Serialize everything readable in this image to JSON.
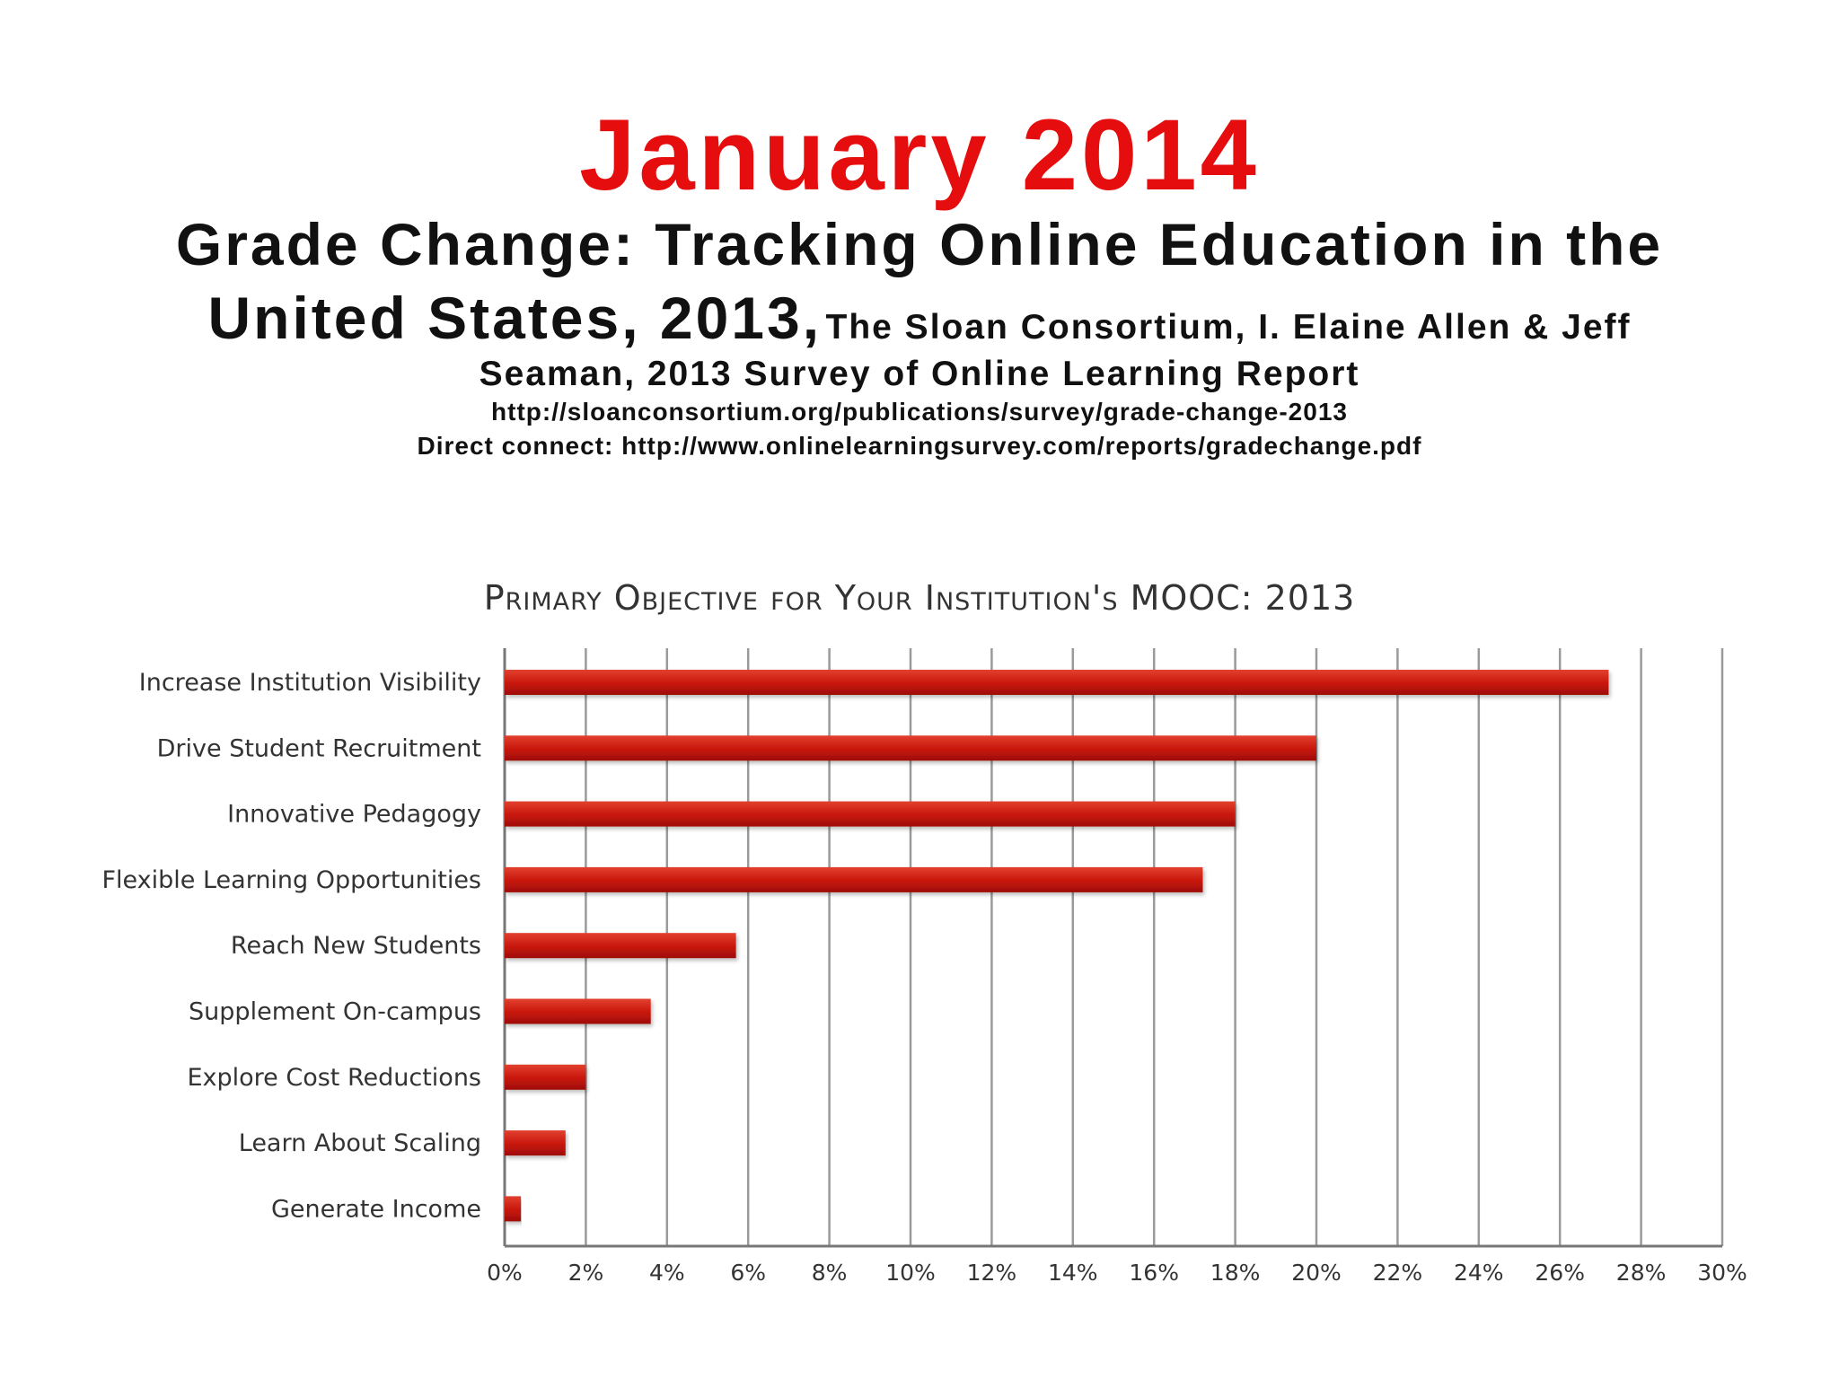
{
  "header": {
    "date_title": "January 2014",
    "report_title_line1": "Grade Change: Tracking Online Education in the",
    "report_title_line2": "United States, 2013,",
    "authors_part1": "The Sloan Consortium, I. Elaine Allen & Jeff",
    "authors_part2": "Seaman, 2013 Survey of Online Learning Report",
    "url_primary": "http://sloanconsortium.org/publications/survey/grade-change-2013",
    "url_direct": "Direct connect: http://www.onlinelearningsurvey.com/reports/gradechange.pdf",
    "title_color": "#e50d0d"
  },
  "chart_data": {
    "type": "bar",
    "orientation": "horizontal",
    "title": "Primary Objective for Your Institution's MOOC: 2013",
    "categories": [
      "Increase Institution Visibility",
      "Drive Student Recruitment",
      "Innovative Pedagogy",
      "Flexible Learning Opportunities",
      "Reach New Students",
      "Supplement On-campus",
      "Explore Cost Reductions",
      "Learn About Scaling",
      "Generate Income"
    ],
    "values": [
      27.2,
      20.0,
      18.0,
      17.2,
      5.7,
      3.6,
      2.0,
      1.5,
      0.4
    ],
    "xlim": [
      0,
      30
    ],
    "xticks": [
      0,
      2,
      4,
      6,
      8,
      10,
      12,
      14,
      16,
      18,
      20,
      22,
      24,
      26,
      28,
      30
    ],
    "tick_labels": [
      "0%",
      "2%",
      "4%",
      "6%",
      "8%",
      "10%",
      "12%",
      "14%",
      "16%",
      "18%",
      "20%",
      "22%",
      "24%",
      "26%",
      "28%",
      "30%"
    ],
    "xlabel": "",
    "ylabel": "",
    "grid": true,
    "bar_color": "#c8160b",
    "grid_color": "#9a9a9a"
  }
}
